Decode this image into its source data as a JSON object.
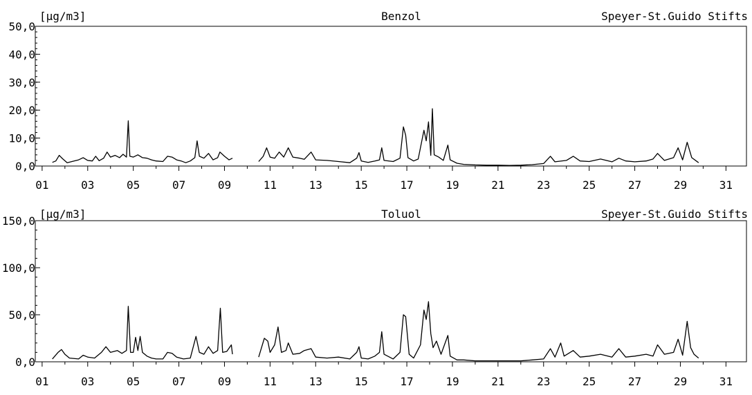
{
  "chart_data": [
    {
      "type": "line",
      "unit": "[µg/m3]",
      "title": "Benzol",
      "station": "Speyer-St.Guido Stifts",
      "ylim": [
        0,
        50
      ],
      "y_ticks": [
        "0,0",
        "10,0",
        "20,0",
        "30,0",
        "40,0",
        "50,0"
      ],
      "y_tick_values": [
        0,
        10,
        20,
        30,
        40,
        50
      ],
      "xlim": [
        0.7,
        31.9
      ],
      "x_ticks": [
        "01",
        "03",
        "05",
        "07",
        "09",
        "11",
        "13",
        "15",
        "17",
        "19",
        "21",
        "23",
        "25",
        "27",
        "29",
        "31"
      ],
      "x_tick_values": [
        1,
        3,
        5,
        7,
        9,
        11,
        13,
        15,
        17,
        19,
        21,
        23,
        25,
        27,
        29,
        31
      ],
      "series": [
        {
          "color": "#000000",
          "segments": [
            [
              [
                1.45,
                1.3
              ],
              [
                1.6,
                1.8
              ],
              [
                1.75,
                3.8
              ],
              [
                1.9,
                2.6
              ],
              [
                2.1,
                1.2
              ],
              [
                2.4,
                1.8
              ],
              [
                2.6,
                2.2
              ],
              [
                2.8,
                3.0
              ],
              [
                3.0,
                2.0
              ],
              [
                3.2,
                1.8
              ],
              [
                3.35,
                3.5
              ],
              [
                3.5,
                1.9
              ],
              [
                3.7,
                2.8
              ],
              [
                3.85,
                5.0
              ],
              [
                4.0,
                3.2
              ],
              [
                4.2,
                3.8
              ],
              [
                4.4,
                3.0
              ],
              [
                4.55,
                4.2
              ],
              [
                4.7,
                3.2
              ],
              [
                4.78,
                16.2
              ],
              [
                4.85,
                3.5
              ],
              [
                5.0,
                3.2
              ],
              [
                5.2,
                4.0
              ],
              [
                5.4,
                3.0
              ],
              [
                5.6,
                2.8
              ],
              [
                5.8,
                2.2
              ],
              [
                6.0,
                1.8
              ],
              [
                6.3,
                1.6
              ],
              [
                6.5,
                3.5
              ],
              [
                6.7,
                3.2
              ],
              [
                6.9,
                2.2
              ],
              [
                7.1,
                1.8
              ],
              [
                7.3,
                1.2
              ],
              [
                7.5,
                1.8
              ],
              [
                7.7,
                3.0
              ],
              [
                7.8,
                9.0
              ],
              [
                7.9,
                3.5
              ],
              [
                8.1,
                2.8
              ],
              [
                8.3,
                4.5
              ],
              [
                8.5,
                2.2
              ],
              [
                8.7,
                3.0
              ],
              [
                8.8,
                5.0
              ],
              [
                9.0,
                3.5
              ],
              [
                9.2,
                2.2
              ],
              [
                9.35,
                2.8
              ]
            ],
            [
              [
                10.5,
                1.6
              ],
              [
                10.7,
                3.5
              ],
              [
                10.85,
                6.5
              ],
              [
                11.0,
                3.2
              ],
              [
                11.2,
                2.8
              ],
              [
                11.4,
                5.0
              ],
              [
                11.6,
                3.2
              ],
              [
                11.8,
                6.5
              ],
              [
                12.0,
                3.2
              ],
              [
                12.3,
                2.8
              ],
              [
                12.5,
                2.4
              ],
              [
                12.8,
                5.0
              ],
              [
                13.0,
                2.2
              ],
              [
                13.5,
                2.0
              ],
              [
                14.0,
                1.6
              ],
              [
                14.5,
                1.2
              ],
              [
                14.8,
                2.8
              ],
              [
                14.9,
                4.8
              ],
              [
                15.0,
                1.8
              ],
              [
                15.3,
                1.3
              ],
              [
                15.6,
                1.8
              ],
              [
                15.8,
                2.2
              ],
              [
                15.9,
                6.5
              ],
              [
                16.0,
                2.0
              ],
              [
                16.4,
                1.6
              ],
              [
                16.7,
                2.8
              ],
              [
                16.85,
                14.0
              ],
              [
                16.95,
                11.0
              ],
              [
                17.05,
                3.0
              ],
              [
                17.3,
                1.8
              ],
              [
                17.5,
                2.5
              ],
              [
                17.75,
                12.8
              ],
              [
                17.85,
                9.0
              ],
              [
                17.95,
                15.8
              ],
              [
                18.05,
                3.8
              ],
              [
                18.12,
                20.5
              ],
              [
                18.2,
                4.0
              ],
              [
                18.4,
                3.2
              ],
              [
                18.6,
                2.0
              ],
              [
                18.8,
                7.5
              ],
              [
                18.9,
                2.2
              ],
              [
                19.2,
                1.0
              ],
              [
                19.5,
                0.6
              ],
              [
                20.0,
                0.4
              ],
              [
                20.5,
                0.3
              ],
              [
                21.0,
                0.3
              ],
              [
                21.5,
                0.2
              ],
              [
                22.0,
                0.3
              ],
              [
                22.5,
                0.5
              ],
              [
                23.0,
                0.9
              ],
              [
                23.3,
                3.5
              ],
              [
                23.5,
                1.5
              ],
              [
                24.0,
                2.0
              ],
              [
                24.3,
                3.5
              ],
              [
                24.6,
                1.8
              ],
              [
                25.0,
                1.6
              ],
              [
                25.5,
                2.5
              ],
              [
                26.0,
                1.5
              ],
              [
                26.3,
                2.8
              ],
              [
                26.6,
                1.8
              ],
              [
                27.0,
                1.5
              ],
              [
                27.5,
                1.8
              ],
              [
                27.8,
                2.5
              ],
              [
                28.0,
                4.5
              ],
              [
                28.3,
                2.0
              ],
              [
                28.7,
                3.0
              ],
              [
                28.9,
                6.5
              ],
              [
                29.1,
                2.2
              ],
              [
                29.3,
                8.5
              ],
              [
                29.5,
                3.0
              ],
              [
                29.8,
                1.2
              ]
            ]
          ]
        }
      ]
    },
    {
      "type": "line",
      "unit": "[µg/m3]",
      "title": "Toluol",
      "station": "Speyer-St.Guido Stifts",
      "ylim": [
        0,
        150
      ],
      "y_ticks": [
        "0,0",
        "50,0",
        "100,0",
        "150,0"
      ],
      "y_tick_values": [
        0,
        50,
        100,
        150
      ],
      "xlim": [
        0.7,
        31.9
      ],
      "x_ticks": [
        "01",
        "03",
        "05",
        "07",
        "09",
        "11",
        "13",
        "15",
        "17",
        "19",
        "21",
        "23",
        "25",
        "27",
        "29",
        "31"
      ],
      "x_tick_values": [
        1,
        3,
        5,
        7,
        9,
        11,
        13,
        15,
        17,
        19,
        21,
        23,
        25,
        27,
        29,
        31
      ],
      "series": [
        {
          "color": "#000000",
          "segments": [
            [
              [
                1.45,
                3
              ],
              [
                1.7,
                10
              ],
              [
                1.85,
                13
              ],
              [
                2.0,
                8
              ],
              [
                2.2,
                4
              ],
              [
                2.6,
                3
              ],
              [
                2.8,
                7
              ],
              [
                3.0,
                5
              ],
              [
                3.3,
                4
              ],
              [
                3.6,
                10
              ],
              [
                3.8,
                16
              ],
              [
                4.0,
                10
              ],
              [
                4.3,
                12
              ],
              [
                4.5,
                9
              ],
              [
                4.7,
                12
              ],
              [
                4.78,
                59
              ],
              [
                4.88,
                10
              ],
              [
                5.0,
                10
              ],
              [
                5.1,
                26
              ],
              [
                5.2,
                12
              ],
              [
                5.3,
                27
              ],
              [
                5.4,
                10
              ],
              [
                5.6,
                6
              ],
              [
                5.8,
                4
              ],
              [
                6.0,
                3
              ],
              [
                6.3,
                3
              ],
              [
                6.5,
                10
              ],
              [
                6.7,
                9
              ],
              [
                6.9,
                5
              ],
              [
                7.2,
                3
              ],
              [
                7.5,
                4
              ],
              [
                7.75,
                27
              ],
              [
                7.9,
                10
              ],
              [
                8.1,
                8
              ],
              [
                8.3,
                16
              ],
              [
                8.5,
                9
              ],
              [
                8.7,
                12
              ],
              [
                8.82,
                57
              ],
              [
                8.92,
                10
              ],
              [
                9.1,
                11
              ],
              [
                9.3,
                18
              ],
              [
                9.35,
                8
              ]
            ],
            [
              [
                10.5,
                5
              ],
              [
                10.75,
                25
              ],
              [
                10.9,
                22
              ],
              [
                11.0,
                10
              ],
              [
                11.2,
                18
              ],
              [
                11.35,
                37
              ],
              [
                11.5,
                10
              ],
              [
                11.7,
                12
              ],
              [
                11.8,
                20
              ],
              [
                12.0,
                8
              ],
              [
                12.3,
                9
              ],
              [
                12.5,
                12
              ],
              [
                12.8,
                14
              ],
              [
                13.0,
                5
              ],
              [
                13.5,
                4
              ],
              [
                14.0,
                5
              ],
              [
                14.5,
                3
              ],
              [
                14.8,
                10
              ],
              [
                14.9,
                16
              ],
              [
                15.0,
                4
              ],
              [
                15.3,
                3
              ],
              [
                15.6,
                6
              ],
              [
                15.8,
                10
              ],
              [
                15.9,
                32
              ],
              [
                16.0,
                8
              ],
              [
                16.4,
                3
              ],
              [
                16.7,
                10
              ],
              [
                16.85,
                50
              ],
              [
                16.95,
                48
              ],
              [
                17.1,
                8
              ],
              [
                17.3,
                4
              ],
              [
                17.6,
                18
              ],
              [
                17.75,
                55
              ],
              [
                17.85,
                45
              ],
              [
                17.95,
                64
              ],
              [
                18.05,
                30
              ],
              [
                18.15,
                15
              ],
              [
                18.3,
                22
              ],
              [
                18.5,
                8
              ],
              [
                18.8,
                28
              ],
              [
                18.9,
                6
              ],
              [
                19.2,
                2
              ],
              [
                19.5,
                2
              ],
              [
                20.0,
                1
              ],
              [
                20.5,
                1
              ],
              [
                21.0,
                1
              ],
              [
                21.5,
                1
              ],
              [
                22.0,
                1
              ],
              [
                22.5,
                2
              ],
              [
                23.0,
                3
              ],
              [
                23.3,
                14
              ],
              [
                23.5,
                5
              ],
              [
                23.75,
                20
              ],
              [
                23.9,
                6
              ],
              [
                24.3,
                12
              ],
              [
                24.6,
                5
              ],
              [
                25.0,
                6
              ],
              [
                25.5,
                8
              ],
              [
                26.0,
                5
              ],
              [
                26.3,
                14
              ],
              [
                26.6,
                5
              ],
              [
                27.0,
                6
              ],
              [
                27.5,
                8
              ],
              [
                27.8,
                6
              ],
              [
                28.0,
                18
              ],
              [
                28.3,
                8
              ],
              [
                28.7,
                10
              ],
              [
                28.9,
                24
              ],
              [
                29.1,
                7
              ],
              [
                29.3,
                43
              ],
              [
                29.45,
                15
              ],
              [
                29.6,
                8
              ],
              [
                29.8,
                4
              ]
            ]
          ]
        }
      ]
    }
  ]
}
